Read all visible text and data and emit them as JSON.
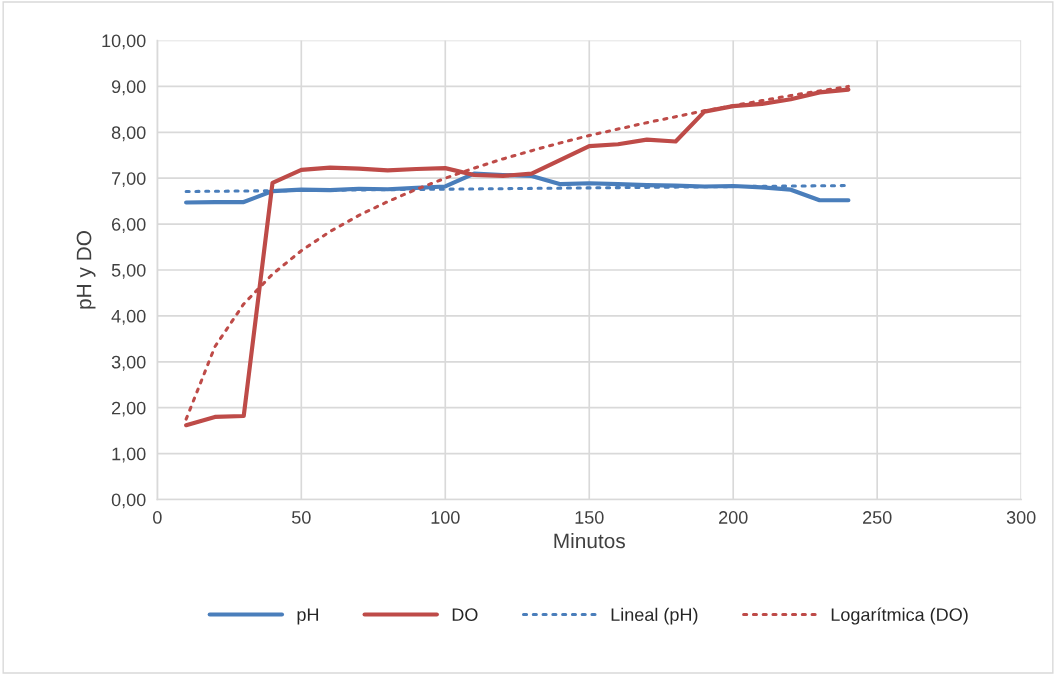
{
  "chart_data": {
    "type": "line",
    "xlabel": "Minutos",
    "ylabel": "pH y DO",
    "x": [
      10,
      20,
      30,
      40,
      50,
      60,
      70,
      80,
      90,
      100,
      110,
      120,
      130,
      140,
      150,
      160,
      170,
      180,
      190,
      200,
      210,
      220,
      230,
      240
    ],
    "series": [
      {
        "name": "pH",
        "color": "#4a7ebb",
        "line_style": "solid",
        "values": [
          6.47,
          6.48,
          6.48,
          6.72,
          6.75,
          6.74,
          6.77,
          6.76,
          6.79,
          6.82,
          7.1,
          7.07,
          7.05,
          6.87,
          6.89,
          6.87,
          6.85,
          6.84,
          6.82,
          6.83,
          6.8,
          6.75,
          6.52,
          6.52
        ]
      },
      {
        "name": "DO",
        "color": "#be4b48",
        "line_style": "solid",
        "values": [
          1.62,
          1.8,
          1.82,
          6.9,
          7.18,
          7.23,
          7.21,
          7.17,
          7.2,
          7.22,
          7.07,
          7.05,
          7.1,
          7.4,
          7.7,
          7.74,
          7.84,
          7.8,
          8.45,
          8.57,
          8.62,
          8.72,
          8.87,
          8.93
        ]
      },
      {
        "name": "Lineal (pH)",
        "color": "#4a7ebb",
        "line_style": "dotted",
        "x": [
          10,
          240
        ],
        "values": [
          6.71,
          6.84
        ]
      },
      {
        "name": "Logarítmica (DO)",
        "color": "#be4b48",
        "line_style": "dotted",
        "values": [
          1.75,
          3.33,
          4.26,
          4.91,
          5.42,
          5.84,
          6.19,
          6.49,
          6.76,
          7.0,
          7.22,
          7.42,
          7.6,
          7.77,
          7.93,
          8.07,
          8.21,
          8.34,
          8.47,
          8.58,
          8.69,
          8.8,
          8.9,
          9.0
        ]
      }
    ],
    "xlim": [
      0,
      300
    ],
    "xticks": [
      0,
      50,
      100,
      150,
      200,
      250,
      300
    ],
    "ylim": [
      0,
      10
    ],
    "yticks": [
      {
        "value": 0,
        "label": "0,00"
      },
      {
        "value": 1,
        "label": "1,00"
      },
      {
        "value": 2,
        "label": "2,00"
      },
      {
        "value": 3,
        "label": "3,00"
      },
      {
        "value": 4,
        "label": "4,00"
      },
      {
        "value": 5,
        "label": "5,00"
      },
      {
        "value": 6,
        "label": "6,00"
      },
      {
        "value": 7,
        "label": "7,00"
      },
      {
        "value": 8,
        "label": "8,00"
      },
      {
        "value": 9,
        "label": "9,00"
      },
      {
        "value": 10,
        "label": "10,00"
      }
    ],
    "grid": true,
    "legend": "bottom",
    "marker": "none"
  }
}
